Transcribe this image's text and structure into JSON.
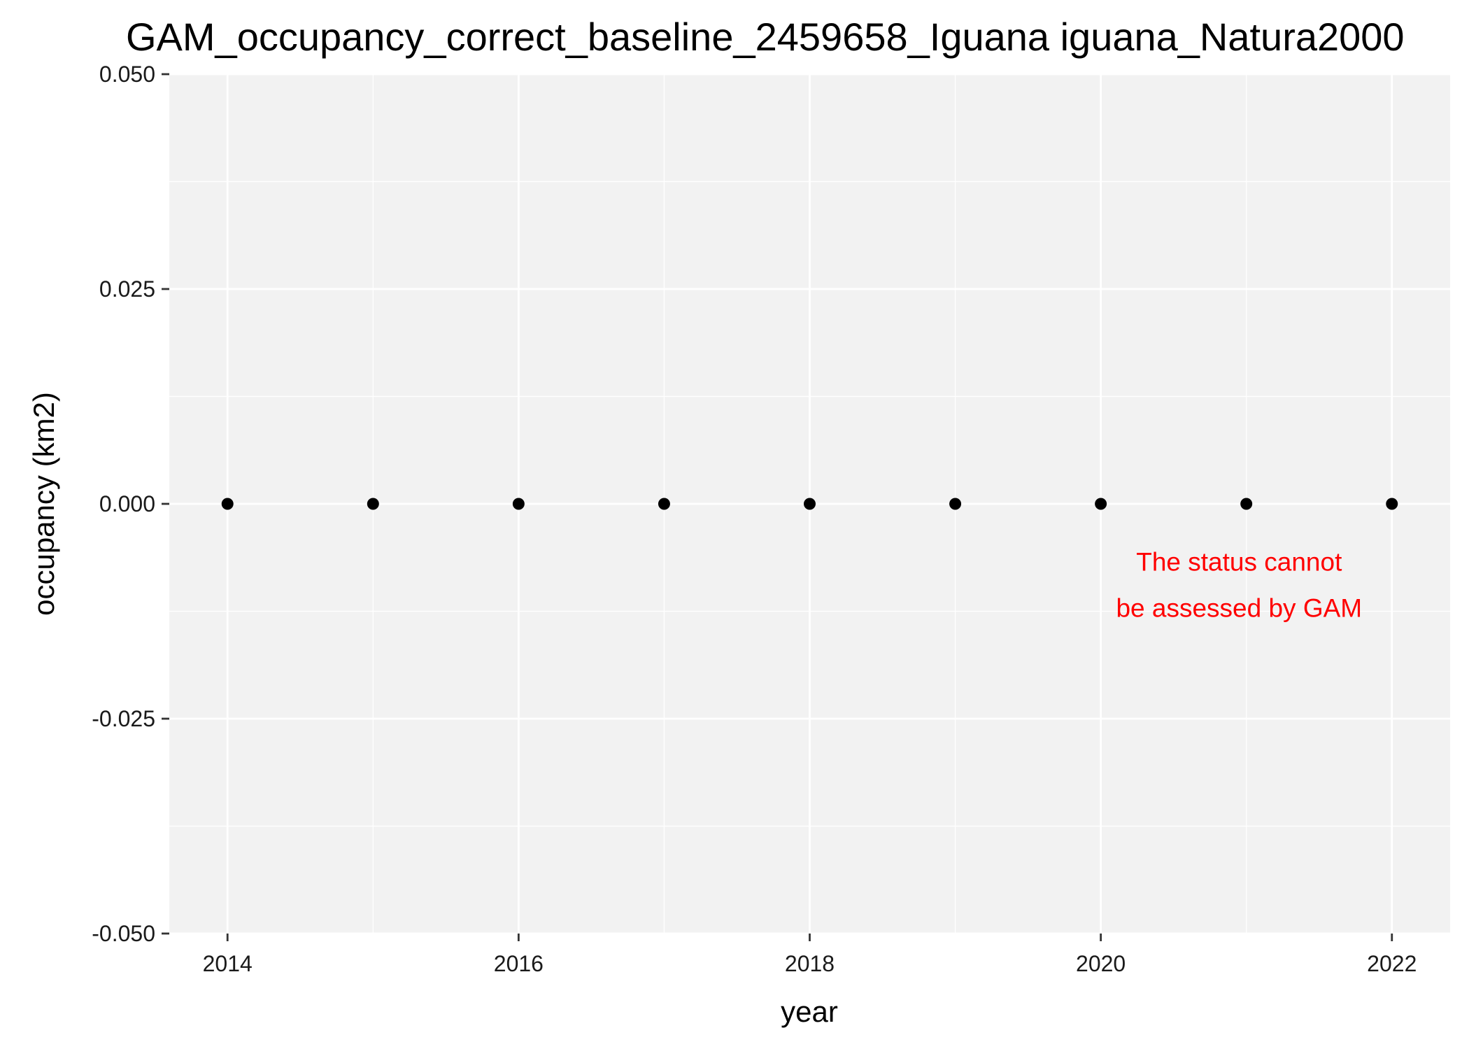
{
  "chart_data": {
    "type": "scatter",
    "title": "GAM_occupancy_correct_baseline_2459658_Iguana iguana_Natura2000",
    "xlabel": "year",
    "ylabel": "occupancy (km2)",
    "xlim": [
      2013.6,
      2022.4
    ],
    "ylim": [
      -0.05,
      0.05
    ],
    "x_ticks": [
      2014,
      2016,
      2018,
      2020,
      2022
    ],
    "x_tick_labels": [
      "2014",
      "2016",
      "2018",
      "2020",
      "2022"
    ],
    "y_ticks": [
      -0.05,
      -0.025,
      0,
      0.025,
      0.05
    ],
    "y_tick_labels": [
      "-0.050",
      "-0.025",
      "0.000",
      "0.025",
      "0.050"
    ],
    "x_minor": [
      2015,
      2017,
      2019,
      2021
    ],
    "y_minor": [
      -0.0375,
      -0.0125,
      0.0125,
      0.0375
    ],
    "grid": true,
    "series": [
      {
        "x": [
          2014,
          2015,
          2016,
          2017,
          2018,
          2019,
          2020,
          2021,
          2022
        ],
        "values": [
          0,
          0,
          0,
          0,
          0,
          0,
          0,
          0,
          0
        ]
      }
    ],
    "annotation": {
      "lines": [
        "The status cannot",
        "be assessed by GAM"
      ],
      "x": 2020.95,
      "y": -0.0095,
      "color": "#ff0000"
    },
    "colors": {
      "panel": "#f2f2f2",
      "grid": "#ffffff",
      "point": "#000000",
      "annotation": "#ff0000"
    }
  }
}
